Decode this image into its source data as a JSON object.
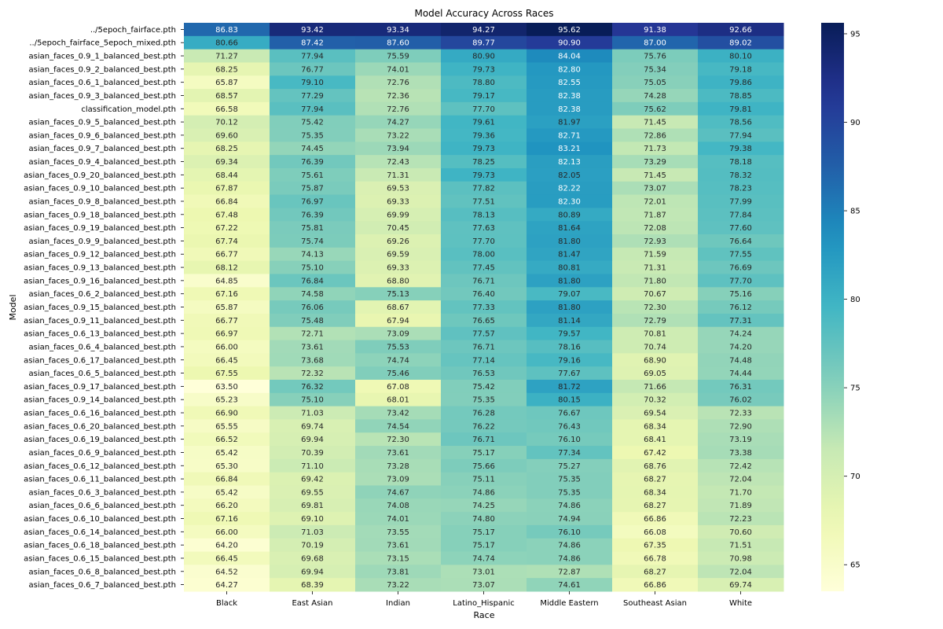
{
  "chart_data": {
    "type": "heatmap",
    "title": "Model Accuracy Across Races",
    "xlabel": "Race",
    "ylabel": "Model",
    "colormap": "YlGnBu",
    "color_range": [
      63.5,
      95.62
    ],
    "colorbar_ticks": [
      65,
      70,
      75,
      80,
      85,
      90,
      95
    ],
    "columns": [
      "Black",
      "East Asian",
      "Indian",
      "Latino_Hispanic",
      "Middle Eastern",
      "Southeast Asian",
      "White"
    ],
    "rows": [
      {
        "model": "../5epoch_fairface.pth",
        "values": [
          "86.83",
          "93.42",
          "93.34",
          "94.27",
          "95.62",
          "91.38",
          "92.66"
        ]
      },
      {
        "model": "../5epoch_fairface_5epoch_mixed.pth",
        "values": [
          "80.66",
          "87.42",
          "87.60",
          "89.77",
          "90.90",
          "87.00",
          "89.02"
        ]
      },
      {
        "model": "asian_faces_0.9_1_balanced_best.pth",
        "values": [
          "71.27",
          "77.94",
          "75.59",
          "80.90",
          "84.04",
          "75.76",
          "80.10"
        ]
      },
      {
        "model": "asian_faces_0.9_2_balanced_best.pth",
        "values": [
          "68.25",
          "76.77",
          "74.01",
          "79.73",
          "82.80",
          "75.34",
          "79.18"
        ]
      },
      {
        "model": "asian_faces_0.6_1_balanced_best.pth",
        "values": [
          "65.87",
          "79.10",
          "72.76",
          "78.80",
          "82.55",
          "75.05",
          "79.86"
        ]
      },
      {
        "model": "asian_faces_0.9_3_balanced_best.pth",
        "values": [
          "68.57",
          "77.29",
          "72.36",
          "79.17",
          "82.38",
          "74.28",
          "78.85"
        ]
      },
      {
        "model": "classification_model.pth",
        "values": [
          "66.58",
          "77.94",
          "72.76",
          "77.70",
          "82.38",
          "75.62",
          "79.81"
        ]
      },
      {
        "model": "asian_faces_0.9_5_balanced_best.pth",
        "values": [
          "70.12",
          "75.42",
          "74.27",
          "79.61",
          "81.97",
          "71.45",
          "78.56"
        ]
      },
      {
        "model": "asian_faces_0.9_6_balanced_best.pth",
        "values": [
          "69.60",
          "75.35",
          "73.22",
          "79.36",
          "82.71",
          "72.86",
          "77.94"
        ]
      },
      {
        "model": "asian_faces_0.9_7_balanced_best.pth",
        "values": [
          "68.25",
          "74.45",
          "73.94",
          "79.73",
          "83.21",
          "71.73",
          "79.38"
        ]
      },
      {
        "model": "asian_faces_0.9_4_balanced_best.pth",
        "values": [
          "69.34",
          "76.39",
          "72.43",
          "78.25",
          "82.13",
          "73.29",
          "78.18"
        ]
      },
      {
        "model": "asian_faces_0.9_20_balanced_best.pth",
        "values": [
          "68.44",
          "75.61",
          "71.31",
          "79.73",
          "82.05",
          "71.45",
          "78.32"
        ]
      },
      {
        "model": "asian_faces_0.9_10_balanced_best.pth",
        "values": [
          "67.87",
          "75.87",
          "69.53",
          "77.82",
          "82.22",
          "73.07",
          "78.23"
        ]
      },
      {
        "model": "asian_faces_0.9_8_balanced_best.pth",
        "values": [
          "66.84",
          "76.97",
          "69.33",
          "77.51",
          "82.30",
          "72.01",
          "77.99"
        ]
      },
      {
        "model": "asian_faces_0.9_18_balanced_best.pth",
        "values": [
          "67.48",
          "76.39",
          "69.99",
          "78.13",
          "80.89",
          "71.87",
          "77.84"
        ]
      },
      {
        "model": "asian_faces_0.9_19_balanced_best.pth",
        "values": [
          "67.22",
          "75.81",
          "70.45",
          "77.63",
          "81.64",
          "72.08",
          "77.60"
        ]
      },
      {
        "model": "asian_faces_0.9_9_balanced_best.pth",
        "values": [
          "67.74",
          "75.74",
          "69.26",
          "77.70",
          "81.80",
          "72.93",
          "76.64"
        ]
      },
      {
        "model": "asian_faces_0.9_12_balanced_best.pth",
        "values": [
          "66.77",
          "74.13",
          "69.59",
          "78.00",
          "81.47",
          "71.59",
          "77.55"
        ]
      },
      {
        "model": "asian_faces_0.9_13_balanced_best.pth",
        "values": [
          "68.12",
          "75.10",
          "69.33",
          "77.45",
          "80.81",
          "71.31",
          "76.69"
        ]
      },
      {
        "model": "asian_faces_0.9_16_balanced_best.pth",
        "values": [
          "64.85",
          "76.84",
          "68.80",
          "76.71",
          "81.80",
          "71.80",
          "77.70"
        ]
      },
      {
        "model": "asian_faces_0.6_2_balanced_best.pth",
        "values": [
          "67.16",
          "74.58",
          "75.13",
          "76.40",
          "79.07",
          "70.67",
          "75.16"
        ]
      },
      {
        "model": "asian_faces_0.9_15_balanced_best.pth",
        "values": [
          "65.87",
          "76.06",
          "68.67",
          "77.33",
          "81.80",
          "72.30",
          "76.12"
        ]
      },
      {
        "model": "asian_faces_0.9_11_balanced_best.pth",
        "values": [
          "66.77",
          "75.48",
          "67.94",
          "76.65",
          "81.14",
          "72.79",
          "77.31"
        ]
      },
      {
        "model": "asian_faces_0.6_13_balanced_best.pth",
        "values": [
          "66.97",
          "72.71",
          "73.09",
          "77.57",
          "79.57",
          "70.81",
          "74.24"
        ]
      },
      {
        "model": "asian_faces_0.6_4_balanced_best.pth",
        "values": [
          "66.00",
          "73.61",
          "75.53",
          "76.71",
          "78.16",
          "70.74",
          "74.20"
        ]
      },
      {
        "model": "asian_faces_0.6_17_balanced_best.pth",
        "values": [
          "66.45",
          "73.68",
          "74.74",
          "77.14",
          "79.16",
          "68.90",
          "74.48"
        ]
      },
      {
        "model": "asian_faces_0.6_5_balanced_best.pth",
        "values": [
          "67.55",
          "72.32",
          "75.46",
          "76.53",
          "77.67",
          "69.05",
          "74.44"
        ]
      },
      {
        "model": "asian_faces_0.9_17_balanced_best.pth",
        "values": [
          "63.50",
          "76.32",
          "67.08",
          "75.42",
          "81.72",
          "71.66",
          "76.31"
        ]
      },
      {
        "model": "asian_faces_0.9_14_balanced_best.pth",
        "values": [
          "65.23",
          "75.10",
          "68.01",
          "75.35",
          "80.15",
          "70.32",
          "76.02"
        ]
      },
      {
        "model": "asian_faces_0.6_16_balanced_best.pth",
        "values": [
          "66.90",
          "71.03",
          "73.42",
          "76.28",
          "76.67",
          "69.54",
          "72.33"
        ]
      },
      {
        "model": "asian_faces_0.6_20_balanced_best.pth",
        "values": [
          "65.55",
          "69.74",
          "74.54",
          "76.22",
          "76.43",
          "68.34",
          "72.90"
        ]
      },
      {
        "model": "asian_faces_0.6_19_balanced_best.pth",
        "values": [
          "66.52",
          "69.94",
          "72.30",
          "76.71",
          "76.10",
          "68.41",
          "73.19"
        ]
      },
      {
        "model": "asian_faces_0.6_9_balanced_best.pth",
        "values": [
          "65.42",
          "70.39",
          "73.61",
          "75.17",
          "77.34",
          "67.42",
          "73.38"
        ]
      },
      {
        "model": "asian_faces_0.6_12_balanced_best.pth",
        "values": [
          "65.30",
          "71.10",
          "73.28",
          "75.66",
          "75.27",
          "68.76",
          "72.42"
        ]
      },
      {
        "model": "asian_faces_0.6_11_balanced_best.pth",
        "values": [
          "66.84",
          "69.42",
          "73.09",
          "75.11",
          "75.35",
          "68.27",
          "72.04"
        ]
      },
      {
        "model": "asian_faces_0.6_3_balanced_best.pth",
        "values": [
          "65.42",
          "69.55",
          "74.67",
          "74.86",
          "75.35",
          "68.34",
          "71.70"
        ]
      },
      {
        "model": "asian_faces_0.6_6_balanced_best.pth",
        "values": [
          "66.20",
          "69.81",
          "74.08",
          "74.25",
          "74.86",
          "68.27",
          "71.89"
        ]
      },
      {
        "model": "asian_faces_0.6_10_balanced_best.pth",
        "values": [
          "67.16",
          "69.10",
          "74.01",
          "74.80",
          "74.94",
          "66.86",
          "72.23"
        ]
      },
      {
        "model": "asian_faces_0.6_14_balanced_best.pth",
        "values": [
          "66.00",
          "71.03",
          "73.55",
          "75.17",
          "76.10",
          "66.08",
          "70.60"
        ]
      },
      {
        "model": "asian_faces_0.6_18_balanced_best.pth",
        "values": [
          "64.20",
          "70.19",
          "73.61",
          "75.17",
          "74.86",
          "67.35",
          "71.51"
        ]
      },
      {
        "model": "asian_faces_0.6_15_balanced_best.pth",
        "values": [
          "66.45",
          "69.68",
          "73.15",
          "74.74",
          "74.86",
          "66.78",
          "70.98"
        ]
      },
      {
        "model": "asian_faces_0.6_8_balanced_best.pth",
        "values": [
          "64.52",
          "69.94",
          "73.81",
          "73.01",
          "72.87",
          "68.27",
          "72.04"
        ]
      },
      {
        "model": "asian_faces_0.6_7_balanced_best.pth",
        "values": [
          "64.27",
          "68.39",
          "73.22",
          "73.07",
          "74.61",
          "66.86",
          "69.74"
        ]
      }
    ]
  }
}
